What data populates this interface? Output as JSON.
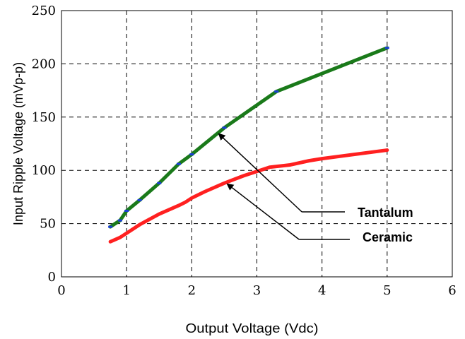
{
  "chart_data": {
    "type": "line",
    "xlabel": "Output Voltage (Vdc)",
    "ylabel": "Input Ripple Voltage (mVp-p)",
    "xlim": [
      0,
      6
    ],
    "ylim": [
      0,
      250
    ],
    "x_ticks": [
      "0",
      "1",
      "2",
      "3",
      "4",
      "5",
      "6"
    ],
    "y_ticks": [
      "0",
      "50",
      "100",
      "150",
      "200",
      "250"
    ],
    "grid": true,
    "grid_style": "dashed",
    "legend": "none",
    "series": [
      {
        "name": "Tantalum",
        "color": "#1a7a1a",
        "marker_color": "#1a3fd6",
        "points": [
          [
            0.75,
            47
          ],
          [
            0.9,
            53
          ],
          [
            1.0,
            62
          ],
          [
            1.2,
            72
          ],
          [
            1.5,
            88
          ],
          [
            1.8,
            106
          ],
          [
            2.0,
            115
          ],
          [
            2.5,
            140
          ],
          [
            3.3,
            174
          ],
          [
            5.0,
            215
          ]
        ]
      },
      {
        "name": "Ceramic",
        "color": "#ff2020",
        "points": [
          [
            0.75,
            33
          ],
          [
            0.9,
            37
          ],
          [
            1.0,
            41
          ],
          [
            1.2,
            49
          ],
          [
            1.5,
            59
          ],
          [
            1.8,
            67
          ],
          [
            1.9,
            70
          ],
          [
            2.0,
            74
          ],
          [
            2.2,
            80
          ],
          [
            2.5,
            88
          ],
          [
            2.8,
            95
          ],
          [
            3.0,
            99
          ],
          [
            3.2,
            103
          ],
          [
            3.5,
            105
          ],
          [
            3.8,
            109
          ],
          [
            4.0,
            111
          ],
          [
            4.5,
            115
          ],
          [
            5.0,
            119
          ]
        ]
      }
    ],
    "annotations": [
      {
        "text": "Tantalum",
        "arrow_from": [
          3.3,
          10
        ],
        "arrow_to": [
          2.42,
          134
        ]
      },
      {
        "text": "Ceramic",
        "arrow_from": [
          3.3,
          33
        ],
        "arrow_to": [
          2.55,
          87
        ]
      }
    ]
  }
}
